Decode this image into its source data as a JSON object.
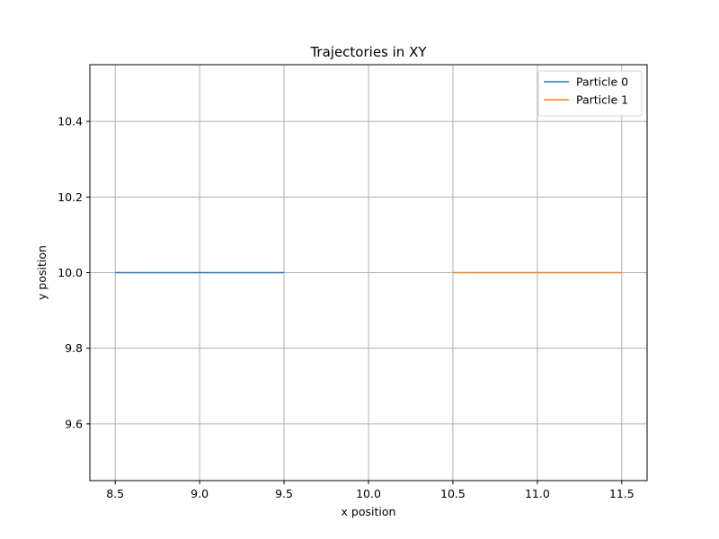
{
  "chart_data": {
    "type": "line",
    "title": "Trajectories in XY",
    "xlabel": "x position",
    "ylabel": "y position",
    "xlim": [
      8.35,
      11.65
    ],
    "ylim": [
      9.45,
      10.55
    ],
    "xticks": [
      8.5,
      9.0,
      9.5,
      10.0,
      10.5,
      11.0,
      11.5
    ],
    "xtick_labels": [
      "8.5",
      "9.0",
      "9.5",
      "10.0",
      "10.5",
      "11.0",
      "11.5"
    ],
    "yticks": [
      9.6,
      9.8,
      10.0,
      10.2,
      10.4
    ],
    "ytick_labels": [
      "9.6",
      "9.8",
      "10.0",
      "10.2",
      "10.4"
    ],
    "grid": true,
    "legend_position": "top-right",
    "series": [
      {
        "name": "Particle 0",
        "color": "#1f77b4",
        "x": [
          8.5,
          9.5
        ],
        "y": [
          10.0,
          10.0
        ]
      },
      {
        "name": "Particle 1",
        "color": "#ff7f0e",
        "x": [
          10.5,
          11.5
        ],
        "y": [
          10.0,
          10.0
        ]
      }
    ]
  }
}
